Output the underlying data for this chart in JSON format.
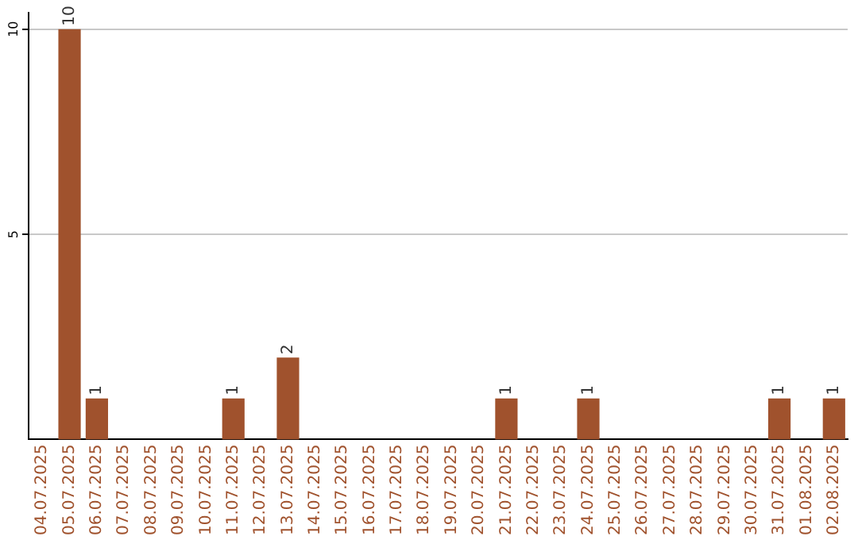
{
  "chart_data": {
    "type": "bar",
    "categories": [
      "04.07.2025",
      "05.07.2025",
      "06.07.2025",
      "07.07.2025",
      "08.07.2025",
      "09.07.2025",
      "10.07.2025",
      "11.07.2025",
      "12.07.2025",
      "13.07.2025",
      "14.07.2025",
      "15.07.2025",
      "16.07.2025",
      "17.07.2025",
      "18.07.2025",
      "19.07.2025",
      "20.07.2025",
      "21.07.2025",
      "22.07.2025",
      "23.07.2025",
      "24.07.2025",
      "25.07.2025",
      "26.07.2025",
      "27.07.2025",
      "28.07.2025",
      "29.07.2025",
      "30.07.2025",
      "31.07.2025",
      "01.08.2025",
      "02.08.2025"
    ],
    "values": [
      0,
      10,
      1,
      0,
      0,
      0,
      0,
      1,
      0,
      2,
      0,
      0,
      0,
      0,
      0,
      0,
      0,
      1,
      0,
      0,
      1,
      0,
      0,
      0,
      0,
      0,
      0,
      1,
      0,
      1
    ],
    "value_labels": [
      null,
      "10",
      "1",
      null,
      null,
      null,
      null,
      "1",
      null,
      "2",
      null,
      null,
      null,
      null,
      null,
      null,
      null,
      "1",
      null,
      null,
      "1",
      null,
      null,
      null,
      null,
      null,
      null,
      "1",
      null,
      "1"
    ],
    "color": "#a0522d",
    "ylim": [
      0,
      10.4
    ],
    "yticks": [
      5,
      10
    ],
    "grid": "y",
    "legend": false
  }
}
